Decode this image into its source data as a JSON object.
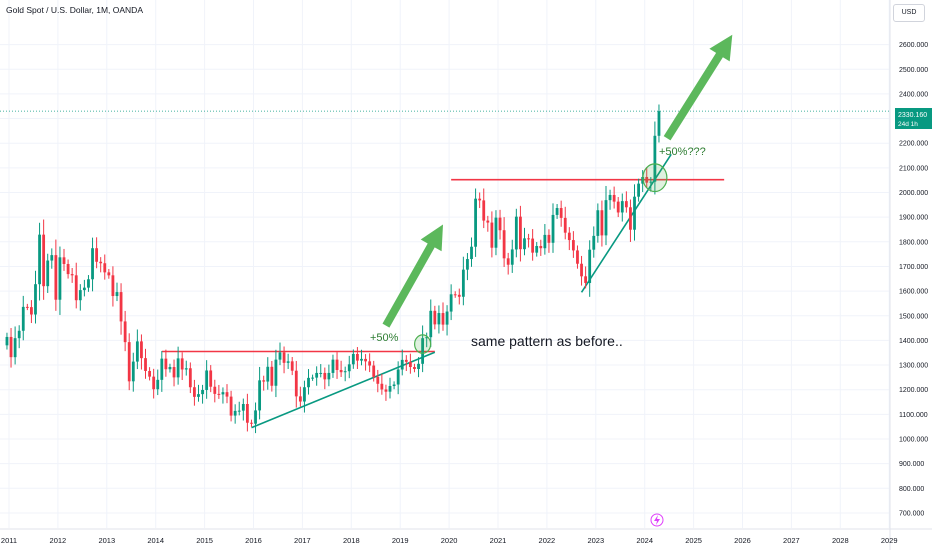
{
  "header": {
    "title": "Gold Spot / U.S. Dollar, 1M, OANDA",
    "currency_button": "USD"
  },
  "price_tag": {
    "value": "2330.160",
    "countdown": "24d 1h",
    "color": "#089981"
  },
  "annotations": {
    "past_move_label": "+50%",
    "future_move_label": "+50%???",
    "pattern_note": "same pattern as before.."
  },
  "colors": {
    "bull": "#089981",
    "bear": "#f23645",
    "resistance": "#f23645",
    "trendline": "#089981",
    "arrow": "#5cb85c",
    "annotation_green": "#2e7d32",
    "grid": "#f0f3fa",
    "axis_text": "#131722"
  },
  "chart_data": {
    "type": "candlestick",
    "title": "Gold Spot / U.S. Dollar, 1M, OANDA",
    "x_axis": {
      "type": "time",
      "ticks": [
        "2011",
        "2012",
        "2013",
        "2014",
        "2015",
        "2016",
        "2017",
        "2018",
        "2019",
        "2020",
        "2021",
        "2022",
        "2023",
        "2024",
        "2025",
        "2026",
        "2027",
        "2028",
        "2029"
      ],
      "range": [
        "2010-12",
        "2029-01"
      ]
    },
    "y_axis": {
      "side": "right",
      "ticks": [
        "700.000",
        "800.000",
        "900.000",
        "1000.000",
        "1100.000",
        "1200.000",
        "1300.000",
        "1400.000",
        "1500.000",
        "1600.000",
        "1700.000",
        "1800.000",
        "1900.000",
        "2000.000",
        "2100.000",
        "2200.000",
        "2300.000",
        "2400.000",
        "2500.000",
        "2600.000"
      ],
      "range": [
        680,
        2740
      ]
    },
    "grid": true,
    "last_price": 2330.16,
    "candles_close": [
      1414,
      1332,
      1409,
      1439,
      1536,
      1535,
      1505,
      1628,
      1829,
      1620,
      1724,
      1746,
      1565,
      1737,
      1710,
      1669,
      1664,
      1563,
      1604,
      1614,
      1648,
      1774,
      1719,
      1713,
      1676,
      1664,
      1580,
      1596,
      1477,
      1393,
      1234,
      1314,
      1396,
      1328,
      1276,
      1253,
      1202,
      1240,
      1326,
      1283,
      1292,
      1250,
      1327,
      1282,
      1287,
      1210,
      1171,
      1182,
      1199,
      1278,
      1212,
      1183,
      1181,
      1190,
      1172,
      1095,
      1114,
      1115,
      1142,
      1066,
      1062,
      1116,
      1238,
      1233,
      1293,
      1216,
      1322,
      1351,
      1309,
      1315,
      1277,
      1173,
      1152,
      1210,
      1248,
      1249,
      1268,
      1268,
      1242,
      1268,
      1322,
      1280,
      1271,
      1275,
      1303,
      1345,
      1318,
      1325,
      1315,
      1298,
      1252,
      1224,
      1201,
      1192,
      1215,
      1221,
      1282,
      1321,
      1313,
      1292,
      1284,
      1305,
      1409,
      1413,
      1520,
      1465,
      1511,
      1464,
      1517,
      1587,
      1585,
      1577,
      1687,
      1730,
      1780,
      1975,
      1968,
      1886,
      1878,
      1776,
      1898,
      1847,
      1733,
      1707,
      1769,
      1902,
      1770,
      1814,
      1813,
      1756,
      1783,
      1774,
      1828,
      1796,
      1909,
      1937,
      1897,
      1837,
      1807,
      1765,
      1711,
      1660,
      1633,
      1768,
      1824,
      1928,
      1826,
      1969,
      1990,
      1963,
      1919,
      1965,
      1940,
      1849,
      1983,
      2036,
      2063,
      2040,
      2044,
      2230,
      2330
    ],
    "patterns": [
      {
        "name": "resistance 2014-2019",
        "type": "horizontal",
        "price": 1355,
        "from": "2014-02",
        "to": "2019-09"
      },
      {
        "name": "rising trendline 2015-2019",
        "type": "trendline",
        "from": [
          "2015-12",
          1046
        ],
        "to": [
          "2019-09",
          1352
        ]
      },
      {
        "name": "resistance 2020-2024",
        "type": "horizontal",
        "price": 2052,
        "from": "2020-01",
        "to": "2025-08"
      },
      {
        "name": "rising trendline 2022-2024",
        "type": "trendline",
        "from": [
          "2022-09",
          1595
        ],
        "to": [
          "2024-07",
          2155
        ]
      }
    ],
    "breakout_markers": [
      {
        "date": "2019-06",
        "price": 1385
      },
      {
        "date": "2024-03",
        "price": 2060
      }
    ],
    "projection_arrows": [
      {
        "from": [
          "2018-09",
          1460
        ],
        "to": [
          "2019-11",
          1870
        ]
      },
      {
        "from": [
          "2024-06",
          2220
        ],
        "to": [
          "2025-10",
          2640
        ]
      }
    ]
  }
}
